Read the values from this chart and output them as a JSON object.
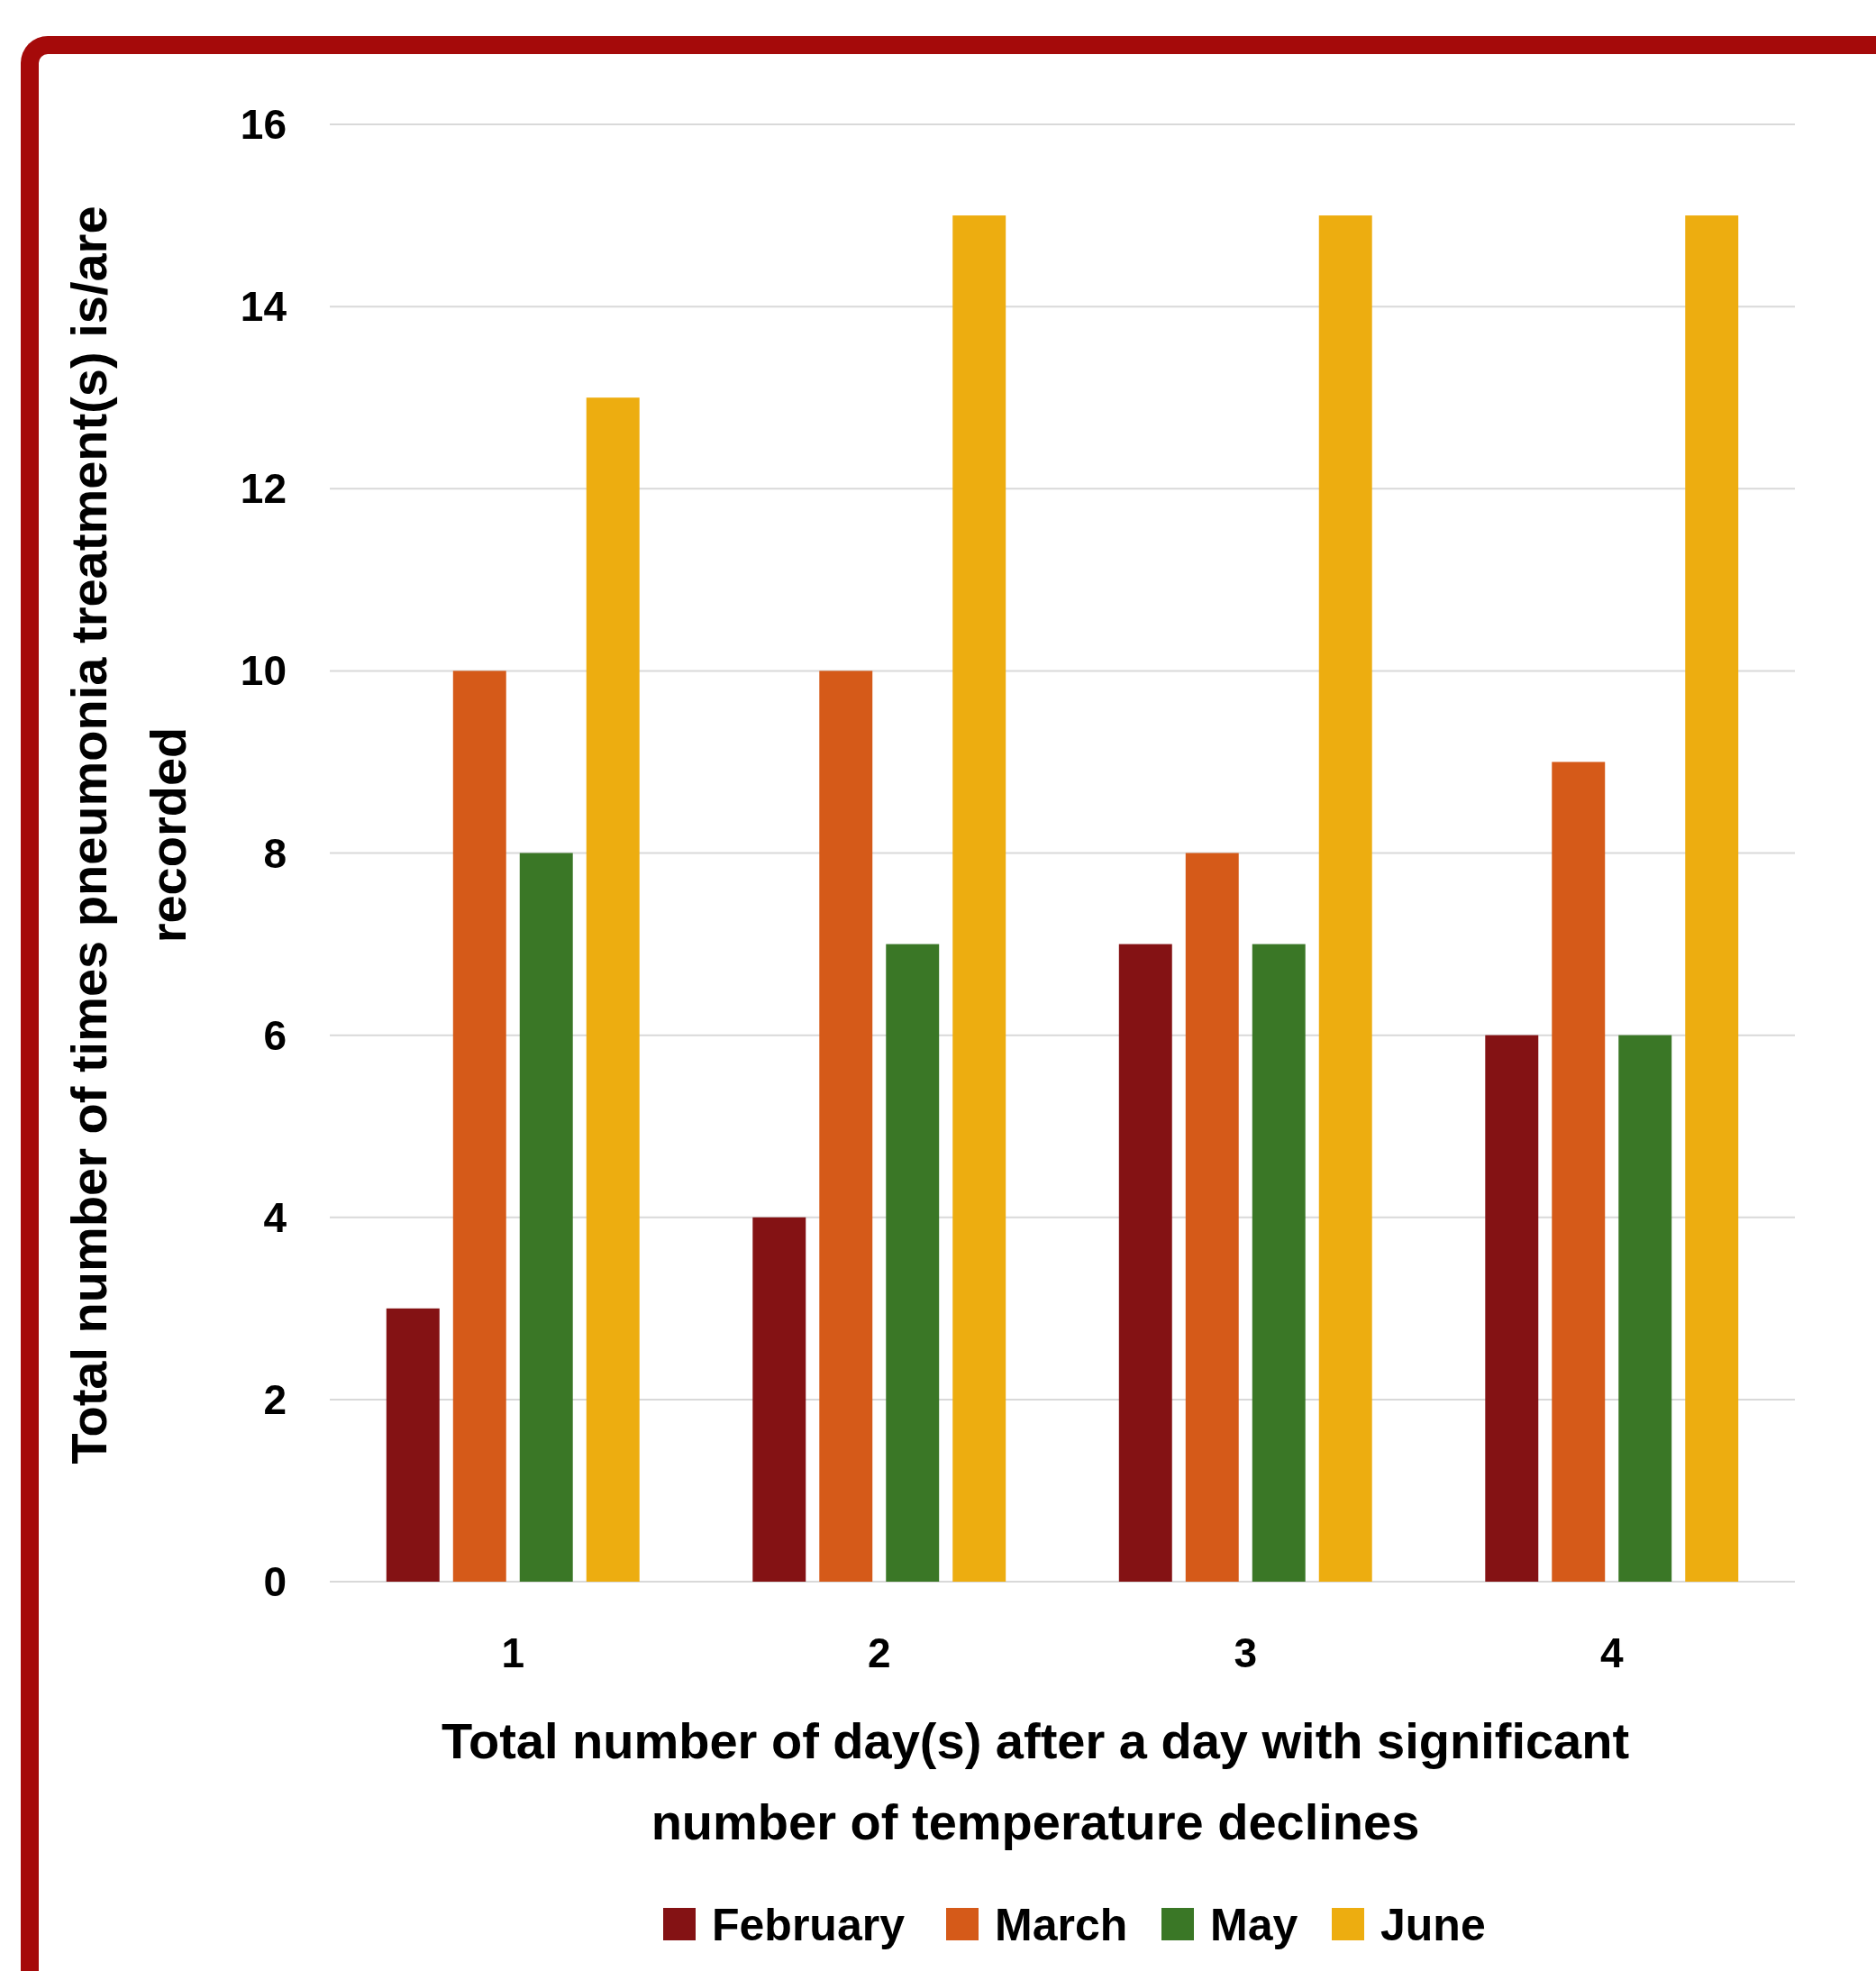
{
  "chart_data": {
    "type": "bar",
    "xlabel": "Total number of day(s) after a day with significant number of temperature declines",
    "ylabel": "Total number of times pneumonia treatment(s) is/are recorded",
    "categories": [
      "1",
      "2",
      "3",
      "4"
    ],
    "series": [
      {
        "name": "February",
        "color": "#841214",
        "values": [
          3,
          4,
          7,
          6
        ]
      },
      {
        "name": "March",
        "color": "#d55a19",
        "values": [
          10,
          10,
          8,
          9
        ]
      },
      {
        "name": "May",
        "color": "#3a7726",
        "values": [
          8,
          7,
          7,
          6
        ]
      },
      {
        "name": "June",
        "color": "#edad10",
        "values": [
          13,
          15,
          15,
          15
        ]
      }
    ],
    "ylim": [
      0,
      16
    ],
    "yticks": [
      0,
      2,
      4,
      6,
      8,
      10,
      12,
      14,
      16
    ],
    "grid": "y",
    "legend": "bottom"
  }
}
